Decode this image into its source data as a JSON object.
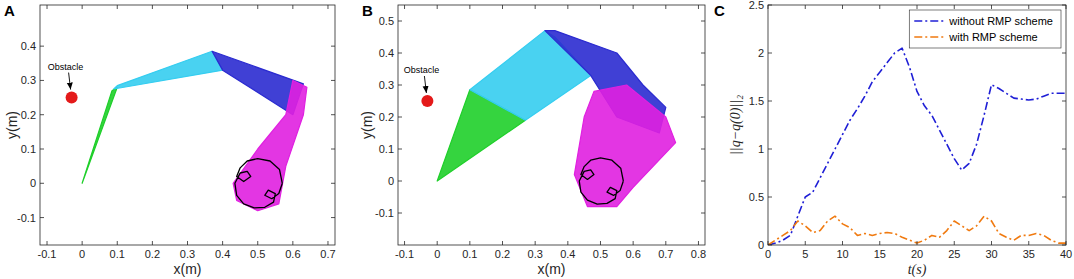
{
  "chart_data": [
    {
      "type": "polygon",
      "title": "A",
      "x_label": "x(m)",
      "y_label": "y(m)",
      "xlim": [
        -0.12,
        0.72
      ],
      "ylim": [
        -0.18,
        0.52
      ],
      "xticks": [
        -0.1,
        0,
        0.1,
        0.2,
        0.3,
        0.4,
        0.5,
        0.6,
        0.7
      ],
      "yticks": [
        -0.1,
        0,
        0.1,
        0.2,
        0.3,
        0.4
      ],
      "grid": false,
      "series": [
        {
          "type": "polygon",
          "color": "#1fcf2a",
          "x": [
            0,
            0.085,
            0.1
          ],
          "y": [
            0,
            0.27,
            0.28
          ]
        },
        {
          "type": "polygon",
          "color": "#35cdf0",
          "x": [
            0.09,
            0.1,
            0.37,
            0.4
          ],
          "y": [
            0.275,
            0.285,
            0.385,
            0.33
          ]
        },
        {
          "type": "polygon",
          "color": "#2b2bd0",
          "x": [
            0.37,
            0.4,
            0.6,
            0.63
          ],
          "y": [
            0.385,
            0.33,
            0.2,
            0.29
          ]
        },
        {
          "type": "polygon",
          "color": "#e020e0",
          "x": [
            0.6,
            0.64,
            0.63,
            0.58,
            0.56,
            0.5,
            0.44,
            0.43,
            0.5,
            0.58
          ],
          "y": [
            0.3,
            0.28,
            0.2,
            0.05,
            -0.06,
            -0.08,
            -0.05,
            0.0,
            0.1,
            0.2
          ]
        },
        {
          "type": "line",
          "color": "#000000",
          "line_style": "solid",
          "x": [
            0.57,
            0.562,
            0.535,
            0.5,
            0.47,
            0.45,
            0.44,
            0.46,
            0.48,
            0.47,
            0.45,
            0.435,
            0.44,
            0.46,
            0.49,
            0.52,
            0.545,
            0.55,
            0.53,
            0.52,
            0.54,
            0.56,
            0.57
          ],
          "y": [
            0.0,
            0.04,
            0.065,
            0.072,
            0.065,
            0.045,
            0.02,
            0.005,
            0.02,
            0.035,
            0.03,
            0.0,
            -0.035,
            -0.06,
            -0.072,
            -0.07,
            -0.055,
            -0.03,
            -0.02,
            -0.035,
            -0.045,
            -0.03,
            0.0
          ]
        },
        {
          "type": "scatter",
          "color": "#e41a1a",
          "marker": "circle",
          "x": [
            -0.03
          ],
          "y": [
            0.25
          ]
        }
      ],
      "annotations": [
        {
          "text": "Obstacle",
          "x": -0.03,
          "y": 0.25
        }
      ]
    },
    {
      "type": "polygon",
      "title": "B",
      "x_label": "x(m)",
      "y_label": "y(m)",
      "xlim": [
        -0.12,
        0.82
      ],
      "ylim": [
        -0.2,
        0.55
      ],
      "xticks": [
        -0.1,
        0,
        0.1,
        0.2,
        0.3,
        0.4,
        0.5,
        0.6,
        0.7,
        0.8
      ],
      "yticks": [
        -0.1,
        0,
        0.1,
        0.2,
        0.3,
        0.4,
        0.5
      ],
      "grid": false,
      "series": [
        {
          "type": "polygon",
          "color": "#1fcf2a",
          "x": [
            0,
            0.1,
            0.27
          ],
          "y": [
            0,
            0.285,
            0.19
          ]
        },
        {
          "type": "polygon",
          "color": "#35cdf0",
          "x": [
            0.1,
            0.33,
            0.36,
            0.47,
            0.27
          ],
          "y": [
            0.285,
            0.47,
            0.45,
            0.33,
            0.19
          ]
        },
        {
          "type": "polygon",
          "color": "#2b2bd0",
          "x": [
            0.33,
            0.36,
            0.55,
            0.63,
            0.7,
            0.68,
            0.55,
            0.47
          ],
          "y": [
            0.47,
            0.47,
            0.4,
            0.3,
            0.23,
            0.15,
            0.2,
            0.33
          ]
        },
        {
          "type": "polygon",
          "color": "#e020e0",
          "x": [
            0.48,
            0.58,
            0.7,
            0.73,
            0.6,
            0.55,
            0.46,
            0.42,
            0.45
          ],
          "y": [
            0.28,
            0.3,
            0.2,
            0.12,
            -0.02,
            -0.08,
            -0.08,
            0.02,
            0.2
          ]
        },
        {
          "type": "line",
          "color": "#000000",
          "line_style": "solid",
          "x": [
            0.57,
            0.562,
            0.535,
            0.5,
            0.47,
            0.45,
            0.44,
            0.46,
            0.48,
            0.47,
            0.45,
            0.435,
            0.44,
            0.46,
            0.49,
            0.52,
            0.545,
            0.55,
            0.53,
            0.52,
            0.54,
            0.56,
            0.57
          ],
          "y": [
            0.0,
            0.04,
            0.065,
            0.072,
            0.065,
            0.045,
            0.02,
            0.005,
            0.02,
            0.035,
            0.03,
            0.0,
            -0.035,
            -0.06,
            -0.072,
            -0.07,
            -0.055,
            -0.03,
            -0.02,
            -0.035,
            -0.045,
            -0.03,
            0.0
          ]
        },
        {
          "type": "scatter",
          "color": "#e41a1a",
          "marker": "circle",
          "x": [
            -0.03
          ],
          "y": [
            0.25
          ]
        }
      ],
      "annotations": [
        {
          "text": "Obstacle",
          "x": -0.03,
          "y": 0.25
        }
      ]
    },
    {
      "type": "line",
      "title": "C",
      "x_label": "t(s)",
      "y_label": "||q−q(0)||₂",
      "xlim": [
        0,
        40
      ],
      "ylim": [
        0,
        2.5
      ],
      "xticks": [
        0,
        5,
        10,
        15,
        20,
        25,
        30,
        35,
        40
      ],
      "yticks": [
        0,
        0.5,
        1,
        1.5,
        2,
        2.5
      ],
      "grid": false,
      "legend": "top-right",
      "x": [
        0,
        1,
        2,
        3,
        4,
        5,
        6,
        7,
        8,
        9,
        10,
        11,
        12,
        13,
        14,
        15,
        16,
        17,
        18,
        19,
        20,
        21,
        22,
        23,
        24,
        25,
        26,
        27,
        28,
        29,
        30,
        31,
        32,
        33,
        34,
        35,
        36,
        37,
        38,
        39,
        40
      ],
      "series": [
        {
          "name": "without RMP scheme",
          "color": "#1f1fd6",
          "line_style": "dash-dot",
          "values": [
            0,
            0.02,
            0.05,
            0.1,
            0.3,
            0.5,
            0.55,
            0.7,
            0.85,
            1.0,
            1.15,
            1.3,
            1.42,
            1.55,
            1.7,
            1.8,
            1.9,
            2.0,
            2.05,
            1.85,
            1.6,
            1.45,
            1.35,
            1.2,
            1.05,
            0.9,
            0.78,
            0.85,
            1.05,
            1.35,
            1.67,
            1.63,
            1.58,
            1.53,
            1.52,
            1.51,
            1.52,
            1.55,
            1.58,
            1.58,
            1.58
          ]
        },
        {
          "name": "with RMP scheme",
          "color": "#f07a10",
          "line_style": "dash-dot",
          "values": [
            0,
            0.05,
            0.1,
            0.15,
            0.25,
            0.2,
            0.13,
            0.15,
            0.25,
            0.3,
            0.22,
            0.18,
            0.1,
            0.12,
            0.1,
            0.12,
            0.13,
            0.12,
            0.08,
            0.05,
            0.02,
            0.05,
            0.1,
            0.08,
            0.15,
            0.25,
            0.2,
            0.15,
            0.2,
            0.3,
            0.25,
            0.12,
            0.08,
            0.05,
            0.1,
            0.1,
            0.12,
            0.1,
            0.05,
            0.02,
            0.02
          ]
        }
      ]
    }
  ]
}
